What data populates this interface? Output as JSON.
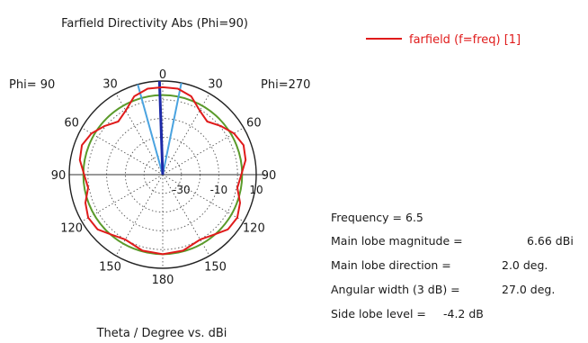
{
  "chart_data": {
    "type": "polar-line",
    "title": "Farfield Directivity Abs (Phi=90)",
    "xlabel": "Theta / Degree vs. dBi",
    "left_label": "Phi= 90",
    "right_label": "Phi=270",
    "angle_ticks": [
      {
        "angle": 0,
        "label": "0"
      },
      {
        "angle": 30,
        "label": "30"
      },
      {
        "angle": 60,
        "label": "60"
      },
      {
        "angle": 90,
        "label": "90"
      },
      {
        "angle": 120,
        "label": "120"
      },
      {
        "angle": 150,
        "label": "150"
      },
      {
        "angle": 180,
        "label": "180"
      },
      {
        "angle": -150,
        "label": "150"
      },
      {
        "angle": -120,
        "label": "120"
      },
      {
        "angle": -90,
        "label": "90"
      },
      {
        "angle": -60,
        "label": "60"
      },
      {
        "angle": -30,
        "label": "30"
      }
    ],
    "radial_range": [
      -40,
      10
    ],
    "radial_ticks": [
      {
        "value": -30,
        "label": "-30"
      },
      {
        "value": -10,
        "label": "-10"
      },
      {
        "value": 10,
        "label": "10"
      }
    ],
    "series": [
      {
        "name": "farfield (f=freq) [1]",
        "color": "#e01b1b",
        "theta": [
          -180,
          -165,
          -150,
          -140,
          -130,
          -120,
          -110,
          -100,
          -90,
          -80,
          -70,
          -60,
          -50,
          -40,
          -30,
          -20,
          -10,
          0,
          10,
          20,
          30,
          40,
          50,
          60,
          70,
          80,
          90,
          100,
          110,
          120,
          130,
          140,
          150,
          165,
          180
        ],
        "r": [
          2.5,
          2.0,
          0.0,
          2.0,
          5.5,
          6.0,
          4.0,
          0.5,
          2.0,
          5.0,
          6.0,
          4.0,
          0.5,
          -3.0,
          -0.5,
          4.5,
          6.6,
          6.66,
          6.6,
          4.5,
          -0.5,
          -3.0,
          0.5,
          4.0,
          6.0,
          5.0,
          2.0,
          0.5,
          4.0,
          6.0,
          5.5,
          2.0,
          0.0,
          2.0,
          2.5
        ]
      }
    ],
    "reference_circle": {
      "value": 2.46,
      "color": "#5a9a2a"
    },
    "main_lobe": {
      "direction": 2.0,
      "width": 27.0,
      "boundary_color": "#4aa3e0",
      "direction_color": "#1d2aa8"
    },
    "grid": true,
    "legend_position": "top-right"
  },
  "info": {
    "frequency_label": "Frequency = 6.5",
    "magnitude_label": "Main lobe magnitude =",
    "magnitude_value": "6.66 dBi",
    "direction_label": "Main lobe direction =",
    "direction_value": "2.0 deg.",
    "width_label": "Angular width (3 dB) =",
    "width_value": "27.0 deg.",
    "sidelobe_label": "Side lobe level =",
    "sidelobe_value": "-4.2 dB"
  }
}
